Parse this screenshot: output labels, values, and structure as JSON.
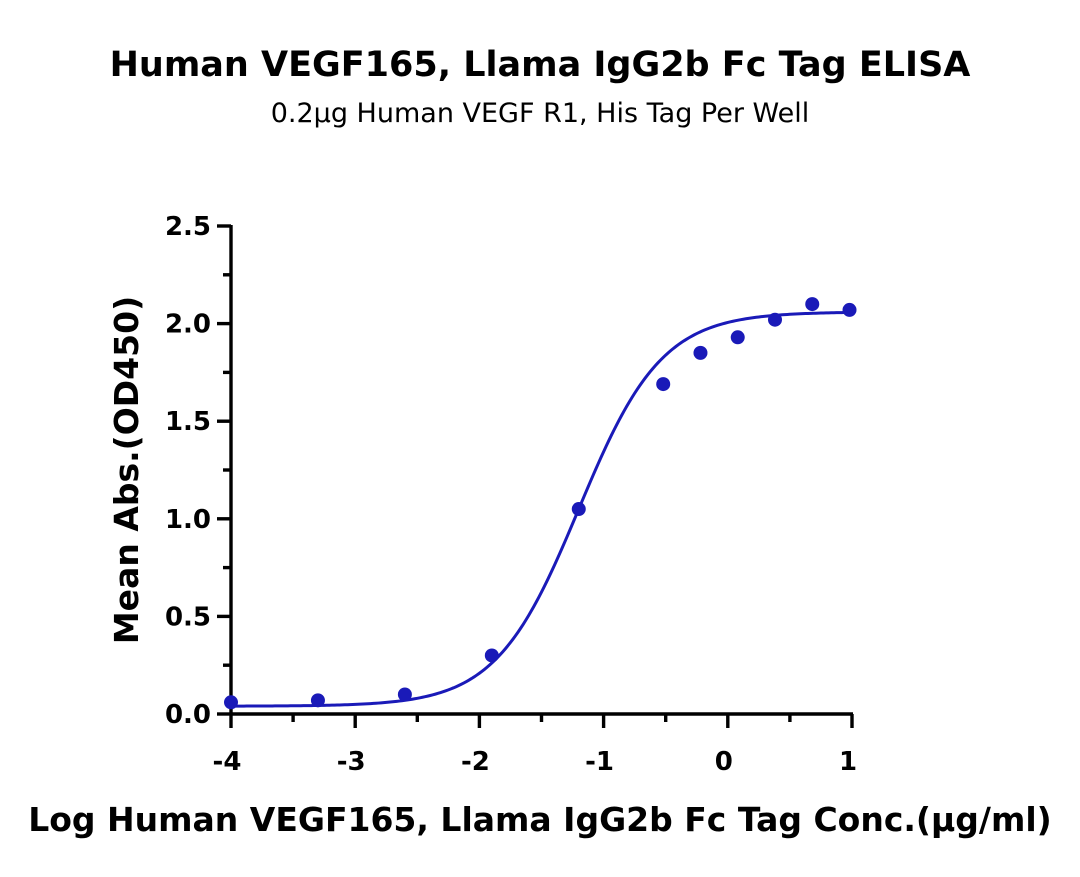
{
  "chart_data": {
    "type": "scatter",
    "title": "Human VEGF165, Llama IgG2b Fc Tag ELISA",
    "subtitle": "0.2μg Human VEGF R1, His Tag Per Well",
    "xlabel": "Log Human VEGF165, Llama IgG2b Fc Tag Conc.(μg/ml)",
    "ylabel": "Mean Abs.(OD450)",
    "xlim": [
      -4,
      1
    ],
    "ylim": [
      0,
      2.5
    ],
    "x_ticks": [
      -4,
      -3,
      -2,
      -1,
      0,
      1
    ],
    "x_tick_labels": [
      "-4",
      "-3",
      "-2",
      "-1",
      "0",
      "1"
    ],
    "y_ticks": [
      0,
      0.5,
      1,
      1.5,
      2,
      2.5
    ],
    "y_tick_labels": [
      "0.0",
      "0.5",
      "1.0",
      "1.5",
      "2.0",
      "2.5"
    ],
    "grid": false,
    "series": [
      {
        "x": [
          -4,
          -3.3,
          -2.6,
          -1.9,
          -1.2,
          -0.52,
          -0.22,
          0.08,
          0.38,
          0.68,
          0.98
        ],
        "y": [
          0.06,
          0.07,
          0.1,
          0.3,
          1.05,
          1.69,
          1.85,
          1.93,
          2.02,
          2.1,
          2.07
        ]
      }
    ],
    "fit_curve": {
      "model": "4PL",
      "bottom": 0.04,
      "top": 2.06,
      "log_ec50": -1.2,
      "hill_slope": 1.3
    },
    "colors": {
      "series": "#1a1ab8",
      "axis": "#000000"
    }
  }
}
